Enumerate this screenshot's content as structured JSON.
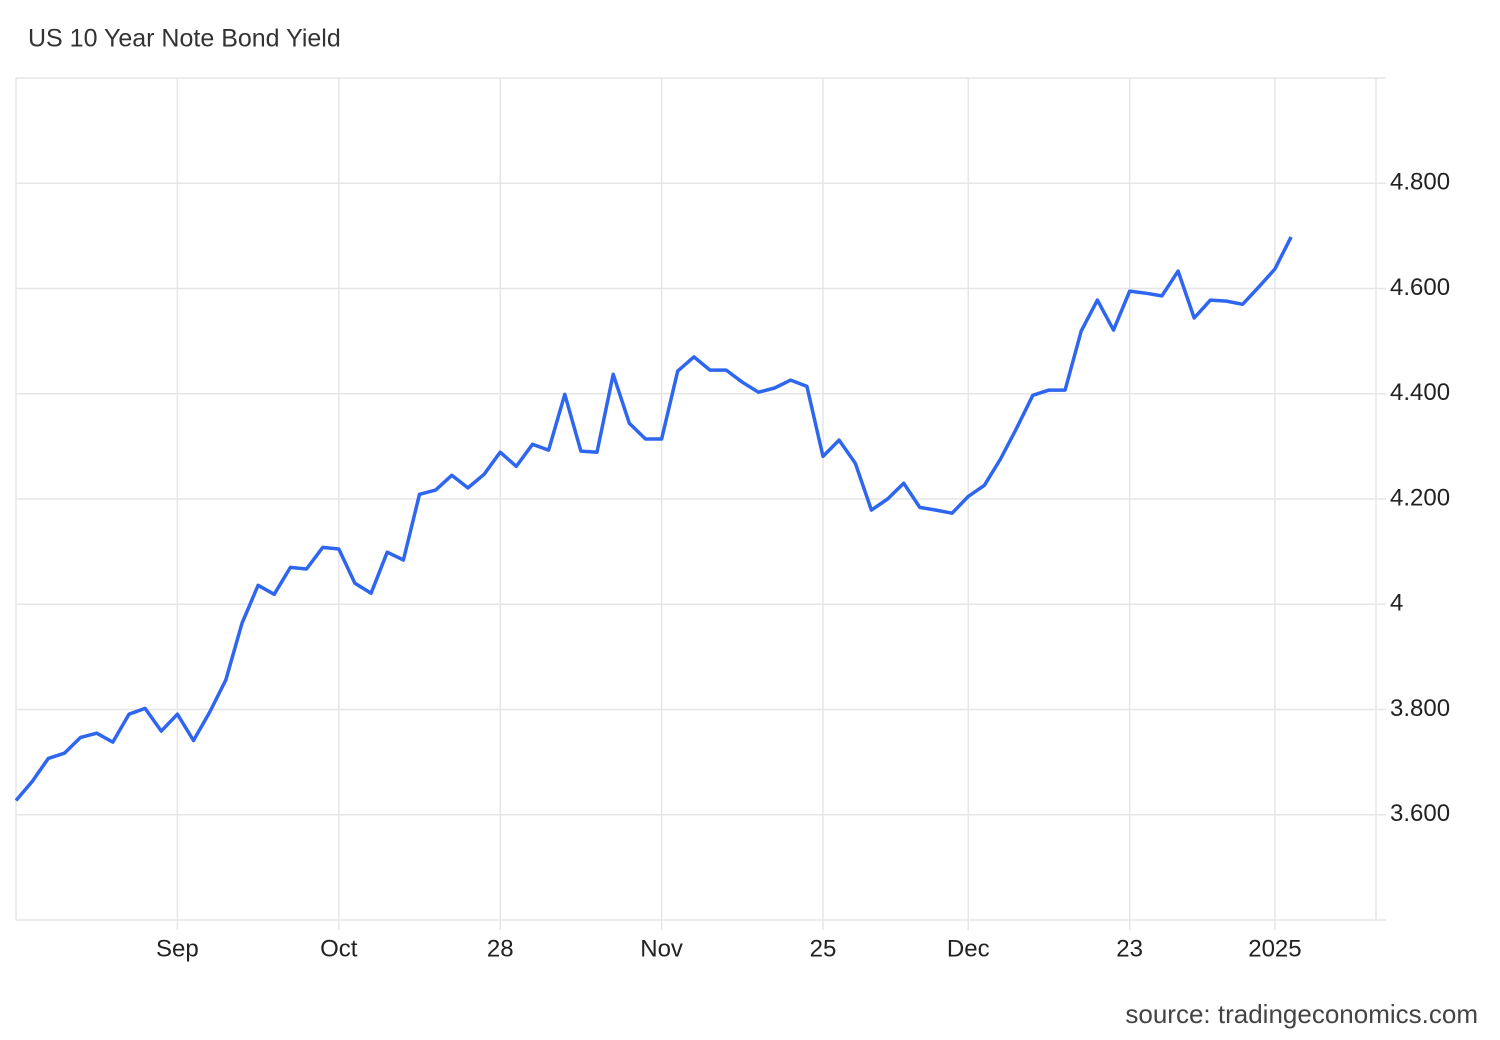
{
  "chart_data": {
    "type": "line",
    "title": "US 10 Year Note Bond Yield",
    "source": "source: tradingeconomics.com",
    "categories": [
      null,
      null,
      null,
      null,
      null,
      null,
      null,
      null,
      null,
      null,
      "Sep",
      null,
      null,
      null,
      null,
      null,
      null,
      null,
      null,
      null,
      "Oct",
      null,
      null,
      null,
      null,
      null,
      null,
      null,
      null,
      null,
      "28",
      null,
      null,
      null,
      null,
      null,
      null,
      null,
      null,
      null,
      "Nov",
      null,
      null,
      null,
      null,
      null,
      null,
      null,
      null,
      null,
      "25",
      null,
      null,
      null,
      null,
      null,
      null,
      null,
      null,
      "Dec",
      null,
      null,
      null,
      null,
      null,
      null,
      null,
      null,
      null,
      "23",
      null,
      null,
      null,
      null,
      null,
      null,
      null,
      null,
      "2025",
      null
    ],
    "values": [
      3.627,
      3.663,
      3.707,
      3.717,
      3.747,
      3.755,
      3.738,
      3.791,
      3.802,
      3.759,
      3.791,
      3.741,
      3.795,
      3.856,
      3.964,
      4.036,
      4.019,
      4.07,
      4.067,
      4.108,
      4.105,
      4.04,
      4.021,
      4.099,
      4.084,
      4.209,
      4.217,
      4.245,
      4.221,
      4.247,
      4.289,
      4.262,
      4.304,
      4.293,
      4.399,
      4.291,
      4.289,
      4.437,
      4.344,
      4.314,
      4.314,
      4.443,
      4.47,
      4.445,
      4.445,
      4.422,
      4.403,
      4.411,
      4.426,
      4.414,
      4.281,
      4.312,
      4.268,
      4.179,
      4.2,
      4.23,
      4.184,
      4.179,
      4.173,
      4.205,
      4.226,
      4.276,
      4.335,
      4.397,
      4.407,
      4.407,
      4.519,
      4.578,
      4.521,
      4.595,
      4.591,
      4.586,
      4.633,
      4.544,
      4.578,
      4.576,
      4.57,
      4.603,
      4.637,
      4.698
    ],
    "color": "#2e66f0",
    "ylim": [
      3.4,
      5.0
    ],
    "yticks": [
      {
        "value": 3.6,
        "label": "3.600"
      },
      {
        "value": 3.8,
        "label": "3.800"
      },
      4,
      {
        "value": 4.2,
        "label": "4.200"
      },
      {
        "value": 4.4,
        "label": "4.400"
      },
      {
        "value": 4.6,
        "label": "4.600"
      },
      {
        "value": 4.8,
        "label": "4.800"
      }
    ],
    "grid": true
  }
}
